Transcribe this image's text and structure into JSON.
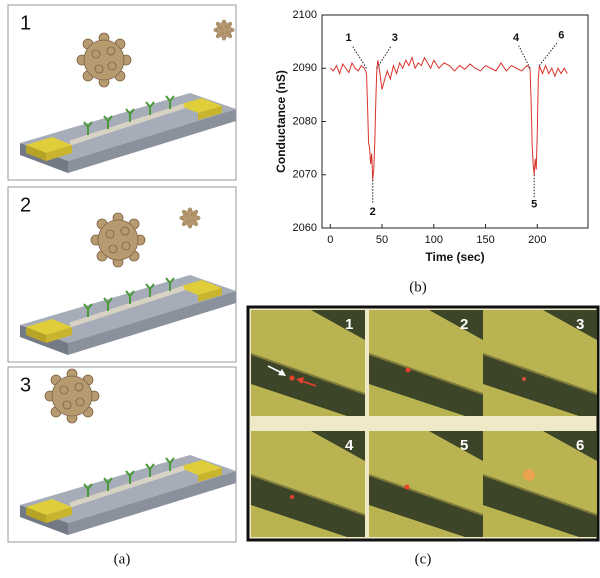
{
  "panel_labels": [
    "(a)",
    "(b)",
    "(c)"
  ],
  "illustration_steps": [
    "1",
    "2",
    "3"
  ],
  "image_frames": [
    "1",
    "2",
    "3",
    "4",
    "5",
    "6"
  ],
  "chart_data": {
    "type": "line",
    "x_label": "Time (sec)",
    "y_label": "Conductance (nS)",
    "xlim": [
      -8,
      249
    ],
    "ylim": [
      2060,
      2100
    ],
    "xticks": [
      0,
      50,
      100,
      150,
      200
    ],
    "yticks": [
      2060,
      2070,
      2080,
      2090,
      2100
    ],
    "series": [
      {
        "color": "#d9342b",
        "x": [
          0,
          3,
          6,
          9,
          12,
          15,
          18,
          21,
          24,
          27,
          30,
          33,
          35,
          36,
          37,
          38,
          39,
          40,
          41,
          42,
          43,
          44,
          45,
          46,
          48,
          50,
          52,
          55,
          58,
          61,
          64,
          67,
          70,
          73,
          76,
          79,
          82,
          85,
          88,
          91,
          94,
          97,
          100,
          105,
          110,
          115,
          120,
          125,
          130,
          135,
          140,
          145,
          150,
          155,
          160,
          165,
          170,
          175,
          180,
          185,
          190,
          193,
          194,
          195,
          196,
          197,
          198,
          199,
          200,
          201,
          202,
          205,
          208,
          211,
          214,
          217,
          220,
          223,
          226,
          229
        ],
        "values": [
          2090,
          2089.5,
          2090.5,
          2089,
          2090.8,
          2090,
          2089.2,
          2091,
          2090,
          2089.5,
          2090.5,
          2090,
          2089,
          2083,
          2076,
          2075,
          2072,
          2074,
          2069,
          2071,
          2076,
          2084,
          2090,
          2091.5,
          2089,
          2086,
          2087.5,
          2089.5,
          2088,
          2090.5,
          2089,
          2091,
          2090,
          2091.5,
          2090.5,
          2092,
          2090,
          2091,
          2090.5,
          2092,
          2091,
          2090,
          2091.5,
          2090,
          2091,
          2090.5,
          2089.5,
          2090.5,
          2089.8,
          2090.8,
          2090,
          2089.5,
          2090.5,
          2090,
          2089.5,
          2091,
          2089.5,
          2090.5,
          2090,
          2089.5,
          2090.5,
          2090,
          2084,
          2076,
          2072,
          2070,
          2073,
          2071,
          2078,
          2088,
          2090.5,
          2089,
          2090.5,
          2089,
          2090,
          2088.5,
          2090,
          2089,
          2090,
          2089
        ]
      }
    ],
    "annotations": [
      {
        "text": "1",
        "x": 35,
        "y": 2090
      },
      {
        "text": "2",
        "x": 41,
        "y": 2069
      },
      {
        "text": "3",
        "x": 45,
        "y": 2090
      },
      {
        "text": "4",
        "x": 193,
        "y": 2090
      },
      {
        "text": "5",
        "x": 197,
        "y": 2070
      },
      {
        "text": "6",
        "x": 202,
        "y": 2090.5
      }
    ]
  }
}
